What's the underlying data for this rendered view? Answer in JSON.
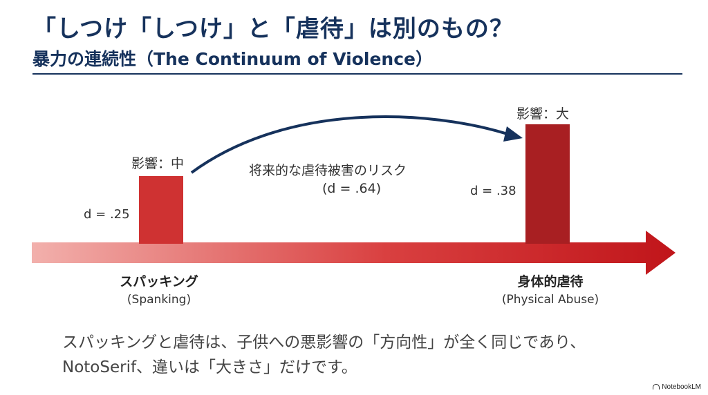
{
  "title": "「しつけ「しつけ」と「虐待」は別のもの？",
  "subtitle": "暴力の連続性（The Continuum of Violence）",
  "spanking": {
    "impact": "影響：中",
    "d": "d = .25",
    "label_ja": "スパッキング",
    "label_en": "(Spanking)"
  },
  "abuse": {
    "impact": "影響：大",
    "d": "d = .38",
    "label_ja": "身体的虐待",
    "label_en": "(Physical Abuse)"
  },
  "risk": {
    "title": "将来的な虐待被害のリスク",
    "d": "(d = .64)"
  },
  "body_text": "スパッキングと虐待は、子供への悪影響の「方向性」が全く同じであり、NotoSerif、違いは「大きさ」だけです。",
  "brand": "NotebookLM",
  "colors": {
    "heading": "#16325c",
    "bar_mid": "#cf3232",
    "bar_big": "#a81f22",
    "arrow_light": "#f2b0ac",
    "arrow_dark": "#c0151a"
  }
}
